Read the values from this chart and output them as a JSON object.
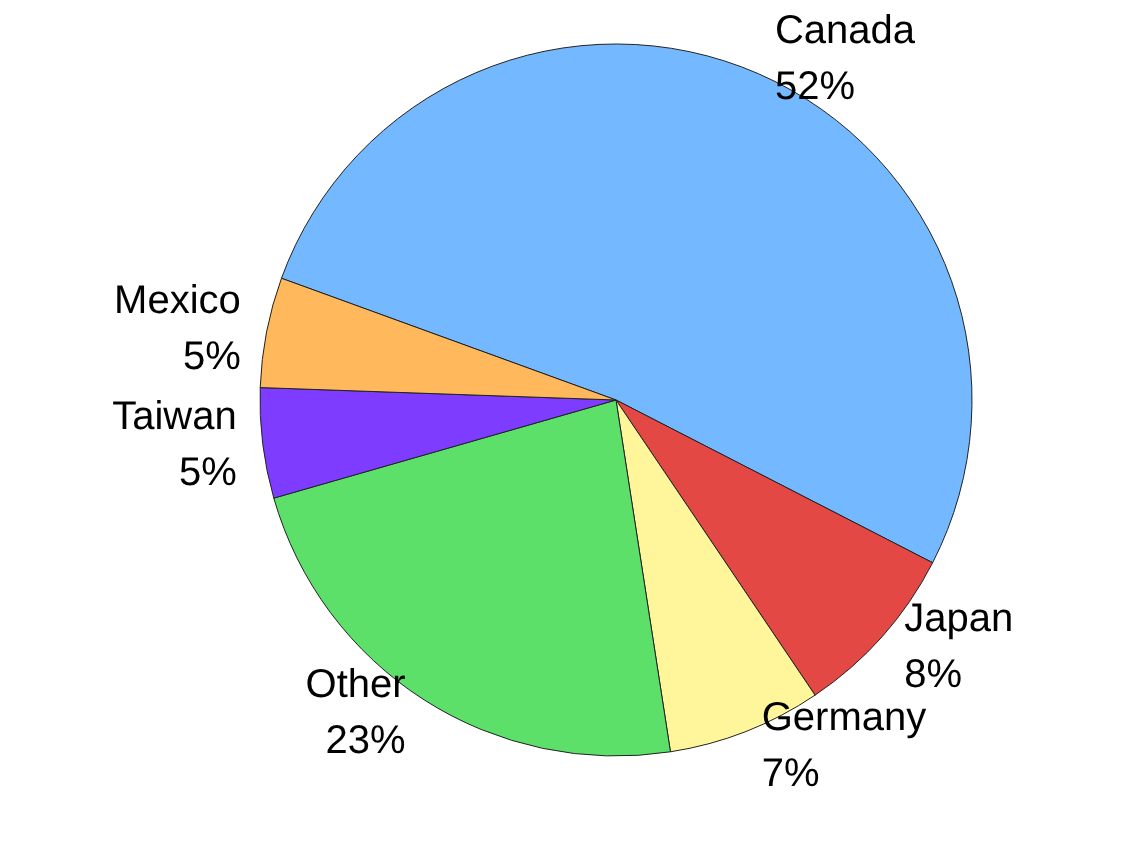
{
  "chart_data": {
    "type": "pie",
    "categories": [
      "Canada",
      "Japan",
      "Germany",
      "Other",
      "Taiwan",
      "Mexico"
    ],
    "values": [
      52,
      8,
      7,
      23,
      5,
      5
    ],
    "value_labels": [
      "52%",
      "8%",
      "7%",
      "23%",
      "5%",
      "5%"
    ],
    "colors": [
      "#74b9ff",
      "#e34845",
      "#fff59a",
      "#5ce06a",
      "#7d3cff",
      "#ffb85b"
    ],
    "legend": false
  }
}
